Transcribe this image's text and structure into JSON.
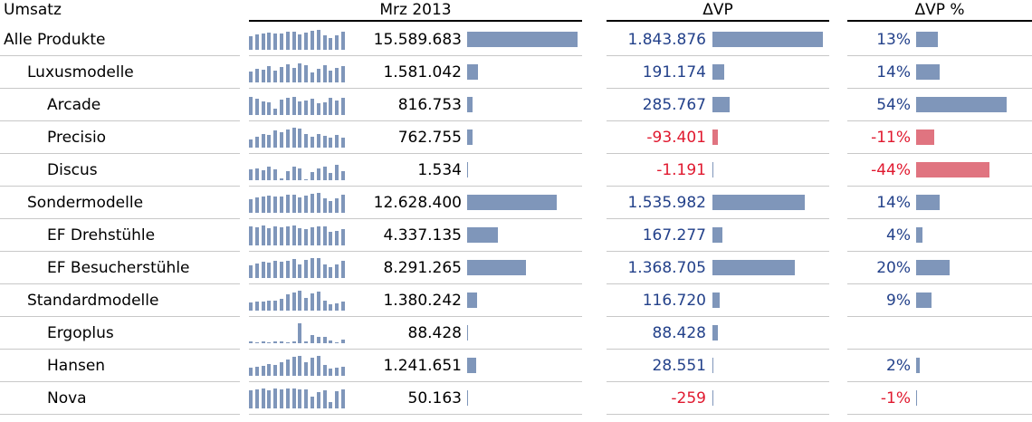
{
  "header": {
    "col_label": "Umsatz",
    "col_value": "Mrz 2013",
    "col_delta": "ΔVP",
    "col_delta_pct": "ΔVP %"
  },
  "colors": {
    "bar_positive": "#7f96ba",
    "bar_negative": "#e07480",
    "text_positive": "#23418a",
    "text_negative": "#e0192f"
  },
  "chart_data": {
    "type": "table",
    "scales": {
      "value_max": 15589683,
      "delta_max": 1843876,
      "delta_pct_max": 54
    },
    "rows": [
      {
        "label": "Alle Produkte",
        "level": 0,
        "value": 15589683,
        "value_text": "15.589.683",
        "delta": 1843876,
        "delta_text": "1.843.876",
        "delta_pct": 13,
        "delta_pct_text": "13%",
        "spark": [
          0.7,
          0.78,
          0.82,
          0.86,
          0.8,
          0.84,
          0.9,
          0.92,
          0.76,
          0.88,
          0.95,
          1.0,
          0.72,
          0.6,
          0.74,
          0.9
        ]
      },
      {
        "label": "Luxusmodelle",
        "level": 1,
        "value": 1581042,
        "value_text": "1.581.042",
        "delta": 191174,
        "delta_text": "191.174",
        "delta_pct": 14,
        "delta_pct_text": "14%",
        "spark": [
          0.55,
          0.7,
          0.62,
          0.82,
          0.6,
          0.78,
          0.92,
          0.72,
          0.96,
          0.88,
          0.52,
          0.66,
          0.86,
          0.58,
          0.74,
          0.8
        ]
      },
      {
        "label": "Arcade",
        "level": 2,
        "value": 816753,
        "value_text": "816.753",
        "delta": 285767,
        "delta_text": "285.767",
        "delta_pct": 54,
        "delta_pct_text": "54%",
        "spark": [
          0.9,
          0.82,
          0.7,
          0.62,
          0.3,
          0.78,
          0.86,
          0.92,
          0.66,
          0.72,
          0.8,
          0.58,
          0.64,
          0.86,
          0.74,
          0.88
        ]
      },
      {
        "label": "Precisio",
        "level": 2,
        "value": 762755,
        "value_text": "762.755",
        "delta": -93401,
        "delta_text": "-93.401",
        "delta_pct": -11,
        "delta_pct_text": "-11%",
        "spark": [
          0.4,
          0.55,
          0.7,
          0.65,
          0.86,
          0.76,
          0.9,
          1.0,
          0.95,
          0.66,
          0.56,
          0.7,
          0.58,
          0.52,
          0.64,
          0.5
        ]
      },
      {
        "label": "Discus",
        "level": 2,
        "value": 1534,
        "value_text": "1.534",
        "delta": -1191,
        "delta_text": "-1.191",
        "delta_pct": -44,
        "delta_pct_text": "-44%",
        "spark": [
          0.55,
          0.6,
          0.5,
          0.66,
          0.56,
          0.1,
          0.46,
          0.68,
          0.58,
          0.05,
          0.42,
          0.58,
          0.66,
          0.35,
          0.78,
          0.46
        ]
      },
      {
        "label": "Sondermodelle",
        "level": 1,
        "value": 12628400,
        "value_text": "12.628.400",
        "delta": 1535982,
        "delta_text": "1.535.982",
        "delta_pct": 14,
        "delta_pct_text": "14%",
        "spark": [
          0.7,
          0.78,
          0.82,
          0.86,
          0.8,
          0.84,
          0.9,
          0.92,
          0.76,
          0.88,
          0.95,
          1.0,
          0.72,
          0.6,
          0.74,
          0.9
        ]
      },
      {
        "label": "EF Drehstühle",
        "level": 2,
        "value": 4337135,
        "value_text": "4.337.135",
        "delta": 167277,
        "delta_text": "167.277",
        "delta_pct": 4,
        "delta_pct_text": "4%",
        "spark": [
          0.95,
          0.92,
          0.98,
          0.88,
          0.96,
          0.9,
          0.94,
          1.0,
          0.86,
          0.82,
          0.9,
          0.94,
          0.96,
          0.7,
          0.72,
          0.8
        ]
      },
      {
        "label": "EF Besucherstühle",
        "level": 2,
        "value": 8291265,
        "value_text": "8.291.265",
        "delta": 1368705,
        "delta_text": "1.368.705",
        "delta_pct": 20,
        "delta_pct_text": "20%",
        "spark": [
          0.64,
          0.72,
          0.8,
          0.76,
          0.86,
          0.82,
          0.88,
          0.94,
          0.7,
          0.92,
          0.98,
          1.0,
          0.66,
          0.56,
          0.7,
          0.86
        ]
      },
      {
        "label": "Standardmodelle",
        "level": 1,
        "value": 1380242,
        "value_text": "1.380.242",
        "delta": 116720,
        "delta_text": "116.720",
        "delta_pct": 9,
        "delta_pct_text": "9%",
        "spark": [
          0.4,
          0.44,
          0.46,
          0.48,
          0.5,
          0.6,
          0.8,
          0.92,
          1.0,
          0.64,
          0.88,
          0.95,
          0.52,
          0.34,
          0.36,
          0.44
        ]
      },
      {
        "label": "Ergoplus",
        "level": 2,
        "value": 88428,
        "value_text": "88.428",
        "delta": 88428,
        "delta_text": "88.428",
        "delta_pct": null,
        "delta_pct_text": "",
        "spark": [
          0.1,
          0.06,
          0.08,
          0.06,
          0.07,
          0.08,
          0.06,
          0.08,
          1.0,
          0.1,
          0.4,
          0.3,
          0.34,
          0.12,
          0.06,
          0.18
        ]
      },
      {
        "label": "Hansen",
        "level": 2,
        "value": 1241651,
        "value_text": "1.241.651",
        "delta": 28551,
        "delta_text": "28.551",
        "delta_pct": 2,
        "delta_pct_text": "2%",
        "spark": [
          0.4,
          0.46,
          0.52,
          0.58,
          0.55,
          0.66,
          0.82,
          0.94,
          1.0,
          0.68,
          0.92,
          0.98,
          0.54,
          0.36,
          0.4,
          0.46
        ]
      },
      {
        "label": "Nova",
        "level": 2,
        "value": 50163,
        "value_text": "50.163",
        "delta": -259,
        "delta_text": "-259",
        "delta_pct": -1,
        "delta_pct_text": "-1%",
        "spark": [
          0.9,
          0.95,
          1.0,
          0.92,
          0.98,
          0.96,
          1.0,
          1.0,
          0.94,
          0.96,
          0.6,
          0.82,
          0.9,
          0.3,
          0.88,
          0.94
        ]
      }
    ]
  }
}
